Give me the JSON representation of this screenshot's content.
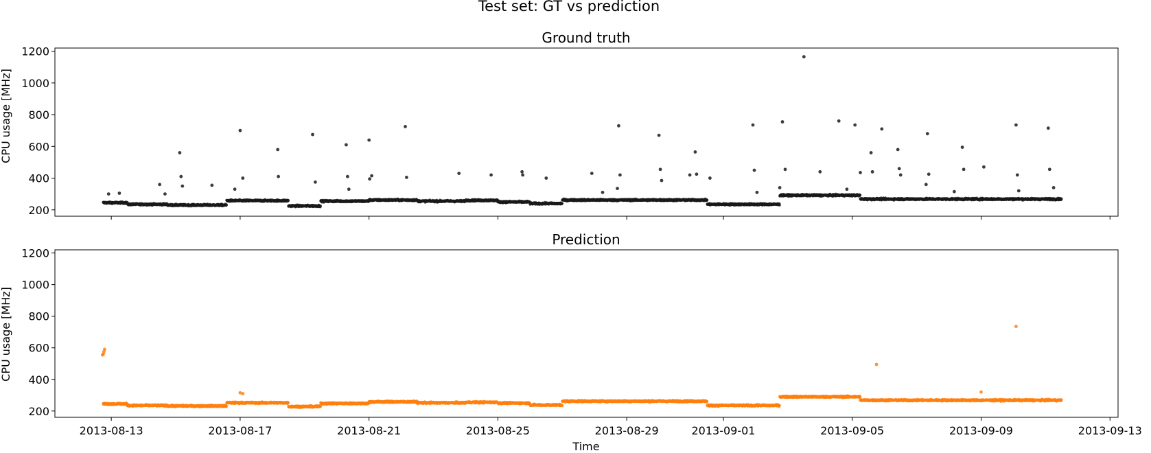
{
  "figure": {
    "suptitle": "Test set: GT vs prediction"
  },
  "colors": {
    "gt": "#1a1a1a",
    "pred": "#ff7f0e",
    "axis": "#000000"
  },
  "chart_data": [
    {
      "type": "scatter",
      "title": "Ground truth",
      "xlabel": "",
      "ylabel": "CPU usage [MHz]",
      "ylim": [
        160,
        1220
      ],
      "xlim": [
        "2013-08-11T06:00",
        "2013-09-13T06:00"
      ],
      "y_ticks": [
        200,
        400,
        600,
        800,
        1000,
        1200
      ],
      "x_ticks": [
        "2013-08-13",
        "2013-08-17",
        "2013-08-21",
        "2013-08-25",
        "2013-08-29",
        "2013-09-01",
        "2013-09-05",
        "2013-09-09",
        "2013-09-13"
      ],
      "x_tick_labels_visible": false,
      "grid": false,
      "series": [
        {
          "color": "#1a1a1a",
          "baseline_segments": [
            {
              "start": "2013-08-12T18:00",
              "end": "2013-08-13T12:00",
              "level": 245
            },
            {
              "start": "2013-08-13T12:00",
              "end": "2013-08-14T18:00",
              "level": 235
            },
            {
              "start": "2013-08-14T18:00",
              "end": "2013-08-16T14:00",
              "level": 230
            },
            {
              "start": "2013-08-16T14:00",
              "end": "2013-08-18T12:00",
              "level": 258
            },
            {
              "start": "2013-08-18T12:00",
              "end": "2013-08-19T12:00",
              "level": 225
            },
            {
              "start": "2013-08-19T12:00",
              "end": "2013-08-21T00:00",
              "level": 255
            },
            {
              "start": "2013-08-21T00:00",
              "end": "2013-08-22T12:00",
              "level": 262
            },
            {
              "start": "2013-08-22T12:00",
              "end": "2013-08-24T00:00",
              "level": 255
            },
            {
              "start": "2013-08-24T00:00",
              "end": "2013-08-25T00:00",
              "level": 260
            },
            {
              "start": "2013-08-25T00:00",
              "end": "2013-08-26T00:00",
              "level": 250
            },
            {
              "start": "2013-08-26T00:00",
              "end": "2013-08-27T00:00",
              "level": 240
            },
            {
              "start": "2013-08-27T00:00",
              "end": "2013-08-31T12:00",
              "level": 262
            },
            {
              "start": "2013-08-31T12:00",
              "end": "2013-09-02T18:00",
              "level": 235
            },
            {
              "start": "2013-09-02T18:00",
              "end": "2013-09-05T06:00",
              "level": 292
            },
            {
              "start": "2013-09-05T06:00",
              "end": "2013-09-11T12:00",
              "level": 268
            }
          ],
          "outliers": [
            [
              "2013-08-12T22:00",
              300
            ],
            [
              "2013-08-13T06:00",
              305
            ],
            [
              "2013-08-14T12:00",
              360
            ],
            [
              "2013-08-14T16:00",
              300
            ],
            [
              "2013-08-15T03:00",
              560
            ],
            [
              "2013-08-15T04:00",
              410
            ],
            [
              "2013-08-15T05:00",
              350
            ],
            [
              "2013-08-16T03:00",
              355
            ],
            [
              "2013-08-16T20:00",
              330
            ],
            [
              "2013-08-17T00:00",
              700
            ],
            [
              "2013-08-17T02:00",
              400
            ],
            [
              "2013-08-18T04:00",
              580
            ],
            [
              "2013-08-18T04:30",
              410
            ],
            [
              "2013-08-19T06:00",
              675
            ],
            [
              "2013-08-19T08:00",
              375
            ],
            [
              "2013-08-20T07:00",
              610
            ],
            [
              "2013-08-20T08:00",
              410
            ],
            [
              "2013-08-20T09:00",
              330
            ],
            [
              "2013-08-21T00:00",
              640
            ],
            [
              "2013-08-21T02:00",
              415
            ],
            [
              "2013-08-21T00:30",
              395
            ],
            [
              "2013-08-22T03:00",
              725
            ],
            [
              "2013-08-22T04:00",
              405
            ],
            [
              "2013-08-23T19:00",
              430
            ],
            [
              "2013-08-24T19:00",
              420
            ],
            [
              "2013-08-25T18:00",
              440
            ],
            [
              "2013-08-25T18:30",
              420
            ],
            [
              "2013-08-26T12:00",
              400
            ],
            [
              "2013-08-27T22:00",
              430
            ],
            [
              "2013-08-28T06:00",
              310
            ],
            [
              "2013-08-28T18:00",
              730
            ],
            [
              "2013-08-28T19:00",
              420
            ],
            [
              "2013-08-28T17:00",
              335
            ],
            [
              "2013-08-30T00:00",
              670
            ],
            [
              "2013-08-30T01:00",
              455
            ],
            [
              "2013-08-30T02:00",
              385
            ],
            [
              "2013-08-30T23:00",
              420
            ],
            [
              "2013-09-01T22:00",
              735
            ],
            [
              "2013-09-01T23:00",
              450
            ],
            [
              "2013-09-02T01:00",
              310
            ],
            [
              "2013-08-31T03:00",
              565
            ],
            [
              "2013-08-31T04:00",
              425
            ],
            [
              "2013-08-31T14:00",
              400
            ],
            [
              "2013-09-02T18:00",
              340
            ],
            [
              "2013-09-02T20:00",
              755
            ],
            [
              "2013-09-02T22:00",
              455
            ],
            [
              "2013-09-03T12:00",
              1165
            ],
            [
              "2013-09-04T00:00",
              440
            ],
            [
              "2013-09-04T14:00",
              760
            ],
            [
              "2013-09-04T20:00",
              330
            ],
            [
              "2013-09-05T02:00",
              735
            ],
            [
              "2013-09-05T06:00",
              435
            ],
            [
              "2013-09-05T14:00",
              560
            ],
            [
              "2013-09-05T15:00",
              440
            ],
            [
              "2013-09-05T22:00",
              710
            ],
            [
              "2013-09-06T10:00",
              580
            ],
            [
              "2013-09-06T11:00",
              460
            ],
            [
              "2013-09-06T12:00",
              420
            ],
            [
              "2013-09-07T08:00",
              680
            ],
            [
              "2013-09-07T09:00",
              425
            ],
            [
              "2013-09-07T07:00",
              360
            ],
            [
              "2013-09-08T04:00",
              315
            ],
            [
              "2013-09-08T10:00",
              595
            ],
            [
              "2013-09-08T11:00",
              455
            ],
            [
              "2013-09-09T02:00",
              470
            ],
            [
              "2013-09-10T02:00",
              735
            ],
            [
              "2013-09-10T03:00",
              420
            ],
            [
              "2013-09-10T04:00",
              320
            ],
            [
              "2013-09-11T02:00",
              715
            ],
            [
              "2013-09-11T03:00",
              455
            ],
            [
              "2013-09-11T06:00",
              340
            ]
          ]
        }
      ]
    },
    {
      "type": "scatter",
      "title": "Prediction",
      "xlabel": "Time",
      "ylabel": "CPU usage [MHz]",
      "ylim": [
        160,
        1220
      ],
      "xlim": [
        "2013-08-11T06:00",
        "2013-09-13T06:00"
      ],
      "y_ticks": [
        200,
        400,
        600,
        800,
        1000,
        1200
      ],
      "x_ticks": [
        "2013-08-13",
        "2013-08-17",
        "2013-08-21",
        "2013-08-25",
        "2013-08-29",
        "2013-09-01",
        "2013-09-05",
        "2013-09-09",
        "2013-09-13"
      ],
      "x_tick_labels_visible": true,
      "grid": false,
      "series": [
        {
          "color": "#ff7f0e",
          "baseline_segments": [
            {
              "start": "2013-08-12T18:00",
              "end": "2013-08-13T12:00",
              "level": 245
            },
            {
              "start": "2013-08-13T12:00",
              "end": "2013-08-14T18:00",
              "level": 235
            },
            {
              "start": "2013-08-14T18:00",
              "end": "2013-08-16T14:00",
              "level": 232
            },
            {
              "start": "2013-08-16T14:00",
              "end": "2013-08-18T12:00",
              "level": 252
            },
            {
              "start": "2013-08-18T12:00",
              "end": "2013-08-19T12:00",
              "level": 228
            },
            {
              "start": "2013-08-19T12:00",
              "end": "2013-08-21T00:00",
              "level": 248
            },
            {
              "start": "2013-08-21T00:00",
              "end": "2013-08-22T12:00",
              "level": 258
            },
            {
              "start": "2013-08-22T12:00",
              "end": "2013-08-24T00:00",
              "level": 252
            },
            {
              "start": "2013-08-24T00:00",
              "end": "2013-08-25T00:00",
              "level": 255
            },
            {
              "start": "2013-08-25T00:00",
              "end": "2013-08-26T00:00",
              "level": 250
            },
            {
              "start": "2013-08-26T00:00",
              "end": "2013-08-27T00:00",
              "level": 238
            },
            {
              "start": "2013-08-27T00:00",
              "end": "2013-08-31T12:00",
              "level": 262
            },
            {
              "start": "2013-08-31T12:00",
              "end": "2013-09-02T18:00",
              "level": 235
            },
            {
              "start": "2013-09-02T18:00",
              "end": "2013-09-05T06:00",
              "level": 290
            },
            {
              "start": "2013-09-05T06:00",
              "end": "2013-09-11T12:00",
              "level": 268
            }
          ],
          "outliers": [
            [
              "2013-08-12T18:00",
              560
            ],
            [
              "2013-08-12T18:30",
              575
            ],
            [
              "2013-08-12T19:00",
              590
            ],
            [
              "2013-08-12T17:30",
              555
            ],
            [
              "2013-08-17T00:00",
              315
            ],
            [
              "2013-08-17T02:00",
              310
            ],
            [
              "2013-09-05T18:00",
              495
            ],
            [
              "2013-09-10T02:00",
              735
            ],
            [
              "2013-09-09T00:00",
              320
            ]
          ]
        }
      ]
    }
  ]
}
